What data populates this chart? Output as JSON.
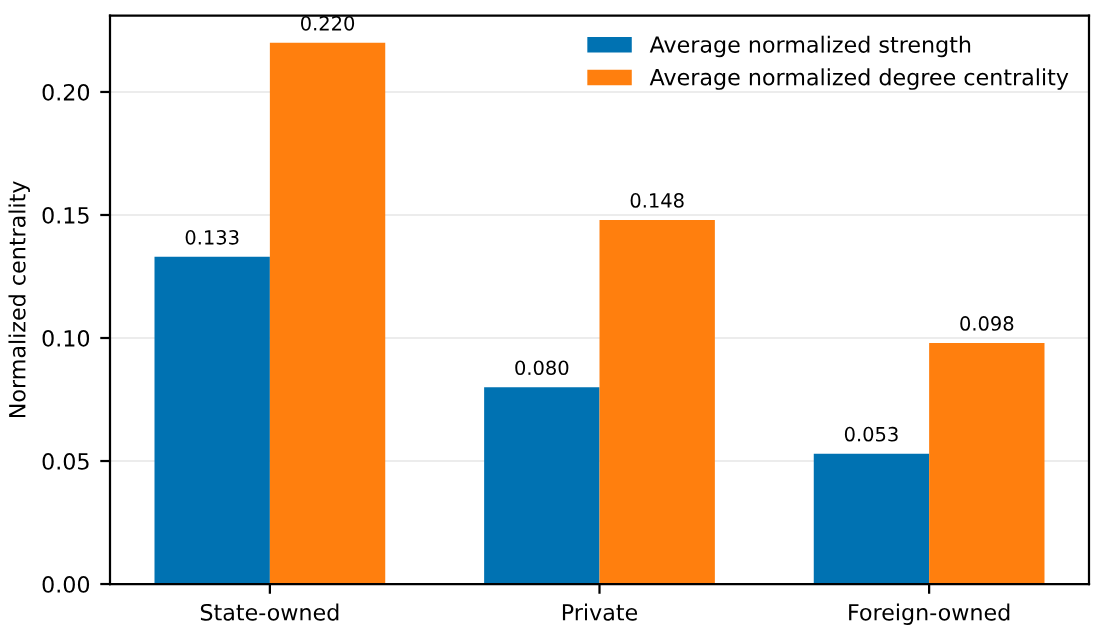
{
  "chart_data": {
    "type": "bar",
    "ylabel": "Normalized centrality",
    "categories": [
      "State-owned",
      "Private",
      "Foreign-owned"
    ],
    "series": [
      {
        "name": "Average normalized strength",
        "color": "#0072b2",
        "values": [
          0.133,
          0.08,
          0.053
        ],
        "value_labels": [
          "0.133",
          "0.080",
          "0.053"
        ]
      },
      {
        "name": "Average normalized degree centrality",
        "color": "#ff7f0e",
        "values": [
          0.22,
          0.148,
          0.098
        ],
        "value_labels": [
          "0.220",
          "0.148",
          "0.098"
        ]
      }
    ],
    "ylim": [
      0,
      0.231
    ],
    "yticks": [
      "0.00",
      "0.05",
      "0.10",
      "0.15",
      "0.20"
    ],
    "grid": "y",
    "legend": "top right"
  }
}
